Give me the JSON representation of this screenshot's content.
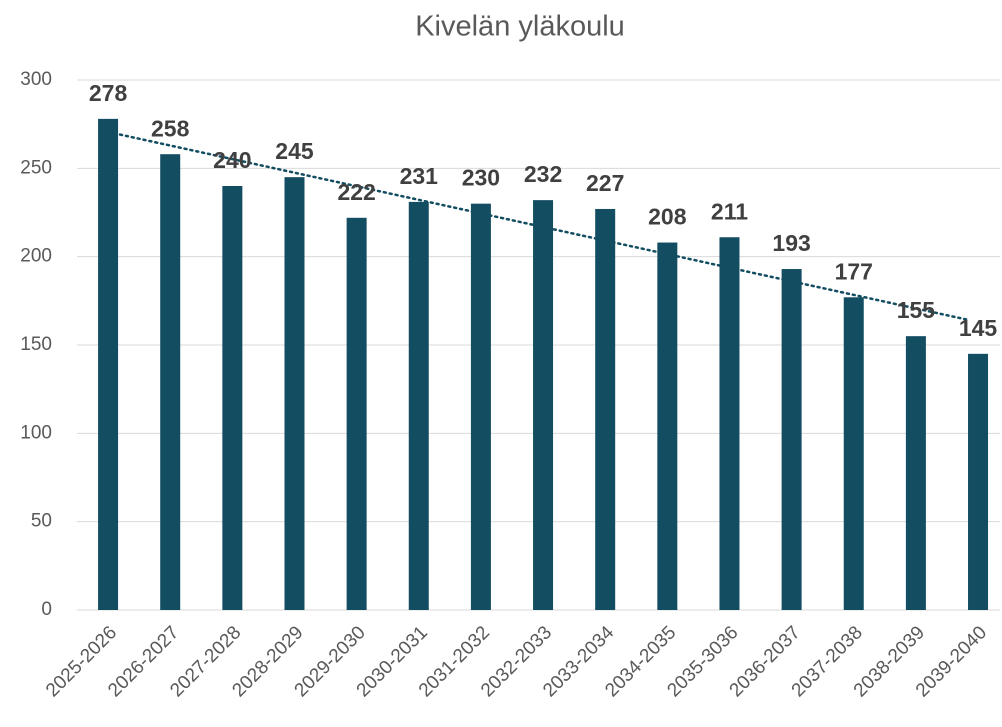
{
  "chart_data": {
    "type": "bar",
    "title": "Kivelän yläkoulu",
    "categories": [
      "2025-2026",
      "2026-2027",
      "2027-2028",
      "2028-2029",
      "2029-2030",
      "2030-2031",
      "2031-2032",
      "2032-2033",
      "2033-2034",
      "2034-2035",
      "2035-3036",
      "2036-2037",
      "2037-2038",
      "2038-2039",
      "2039-2040"
    ],
    "values": [
      278,
      258,
      240,
      245,
      222,
      231,
      230,
      232,
      227,
      208,
      211,
      193,
      177,
      155,
      145
    ],
    "color": "#134d61",
    "trendline": true,
    "trendline_color": "#134d61",
    "ylim": [
      0,
      300
    ],
    "yticks": [
      0,
      50,
      100,
      150,
      200,
      250,
      300
    ],
    "grid": true
  }
}
